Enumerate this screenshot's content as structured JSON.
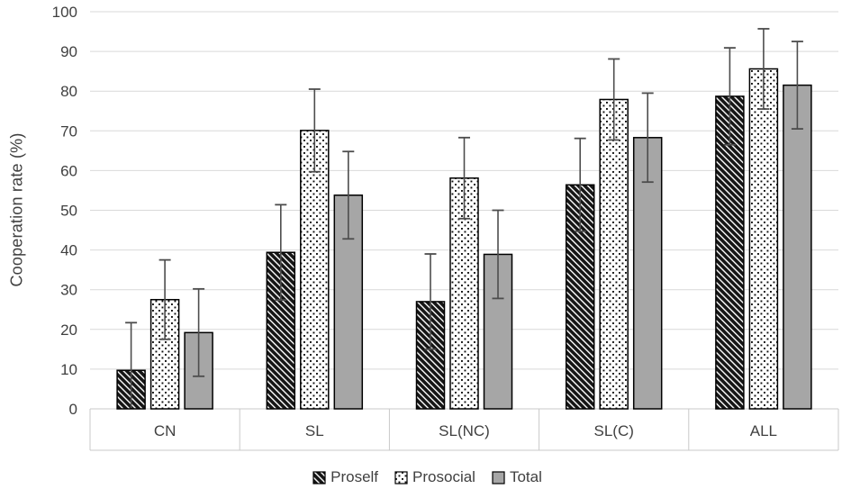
{
  "chart_data": {
    "type": "bar",
    "title": "",
    "ylabel": "Cooperation rate (%)",
    "xlabel": "",
    "ylim": [
      0,
      100
    ],
    "ytick_step": 10,
    "grid": true,
    "legend_position": "bottom",
    "error_bars": true,
    "categories": [
      "CN",
      "SL",
      "SL(NC)",
      "SL(C)",
      "ALL"
    ],
    "series": [
      {
        "name": "Proself",
        "style": "dark-diagonal-hatch",
        "values": [
          9.7,
          39.4,
          27.0,
          56.4,
          78.7
        ],
        "errors": [
          12.0,
          12.0,
          12.0,
          11.7,
          12.2
        ]
      },
      {
        "name": "Prosocial",
        "style": "white-dotted",
        "values": [
          27.5,
          70.1,
          58.1,
          77.9,
          85.6
        ],
        "errors": [
          10.0,
          10.4,
          10.2,
          10.2,
          10.1
        ]
      },
      {
        "name": "Total",
        "style": "solid-gray",
        "values": [
          19.2,
          53.8,
          38.9,
          68.3,
          81.5
        ],
        "errors": [
          11.0,
          11.0,
          11.1,
          11.2,
          11.0
        ]
      }
    ],
    "colors": {
      "bar_dark": "#161616",
      "hatch_stripe": "#ffffff",
      "dot_background": "#ffffff",
      "dot_color": "#0d0d0d",
      "bar_gray": "#a6a6a6",
      "bar_border": "#000000",
      "error_bar": "#4d4d4d",
      "gridline": "#d9d9d9",
      "axis_line": "#c9c9c9",
      "text": "#404040"
    }
  }
}
